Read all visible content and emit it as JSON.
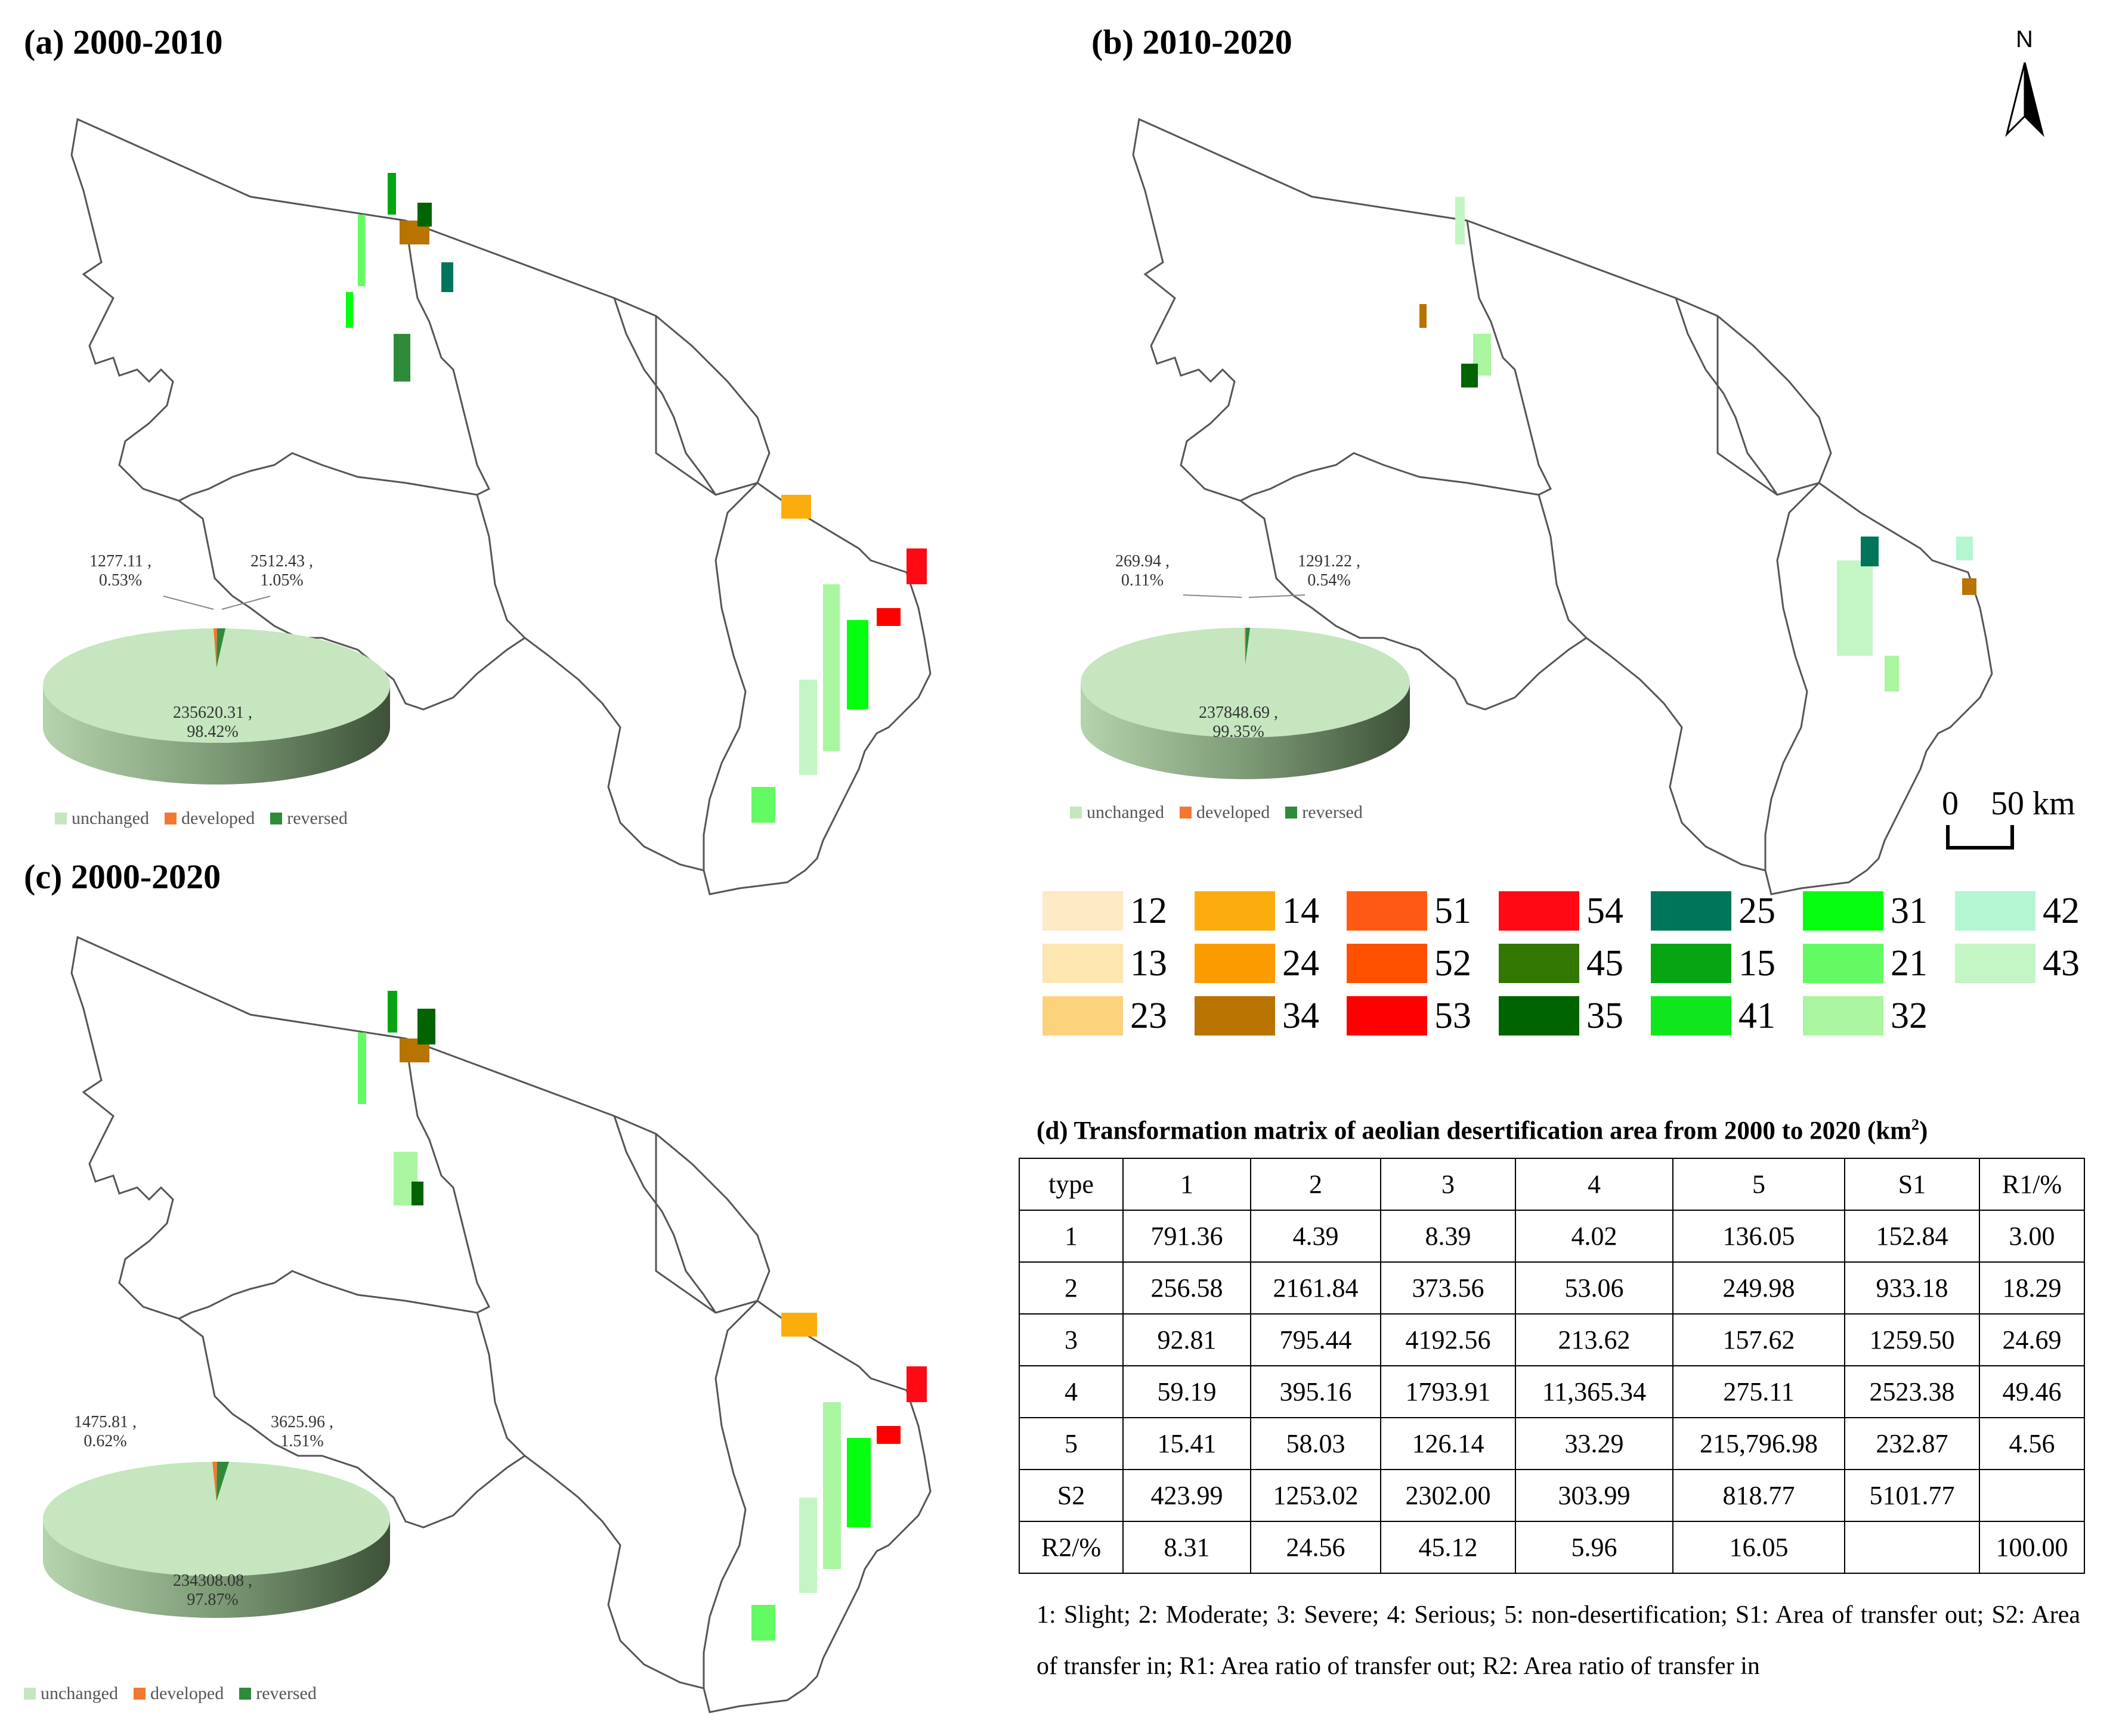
{
  "panels": {
    "a": {
      "title": "(a) 2000-2010",
      "pie": {
        "unchanged": {
          "value": "235620.31 ,",
          "pct": "98.42%"
        },
        "developed": {
          "value": "1277.11 ,",
          "pct": "0.53%"
        },
        "reversed": {
          "value": "2512.43 ,",
          "pct": "1.05%"
        }
      }
    },
    "b": {
      "title": "(b) 2010-2020",
      "pie": {
        "unchanged": {
          "value": "237848.69 ,",
          "pct": "99.35%"
        },
        "developed": {
          "value": "269.94 ,",
          "pct": "0.11%"
        },
        "reversed": {
          "value": "1291.22 ,",
          "pct": "0.54%"
        }
      }
    },
    "c": {
      "title": "(c) 2000-2020",
      "pie": {
        "unchanged": {
          "value": "234308.08 ,",
          "pct": "97.87%"
        },
        "developed": {
          "value": "1475.81 ,",
          "pct": "0.62%"
        },
        "reversed": {
          "value": "3625.96 ,",
          "pct": "1.51%"
        }
      }
    }
  },
  "pie_legend": {
    "unchanged": "unchanged",
    "developed": "developed",
    "reversed": "reversed"
  },
  "pie_colors": {
    "unchanged": "#c5e6bf",
    "developed": "#f07830",
    "reversed": "#2e8b3a"
  },
  "north_label": "N",
  "scale": {
    "zero": "0",
    "value": "50 km"
  },
  "legend": [
    {
      "label": "12",
      "color": "#fde9c4"
    },
    {
      "label": "14",
      "color": "#fcad0e"
    },
    {
      "label": "51",
      "color": "#ff5a14"
    },
    {
      "label": "54",
      "color": "#ff0a14"
    },
    {
      "label": "25",
      "color": "#00755a"
    },
    {
      "label": "31",
      "color": "#05ff0f"
    },
    {
      "label": "42",
      "color": "#b4f5d2"
    },
    {
      "label": "13",
      "color": "#fde6b0"
    },
    {
      "label": "24",
      "color": "#fc9b00"
    },
    {
      "label": "52",
      "color": "#ff5000"
    },
    {
      "label": "45",
      "color": "#327800"
    },
    {
      "label": "15",
      "color": "#05a514"
    },
    {
      "label": "21",
      "color": "#64fa64"
    },
    {
      "label": "43",
      "color": "#c4f5c4"
    },
    {
      "label": "23",
      "color": "#fdd27d"
    },
    {
      "label": "34",
      "color": "#b97300"
    },
    {
      "label": "53",
      "color": "#ff0000"
    },
    {
      "label": "35",
      "color": "#006400"
    },
    {
      "label": "41",
      "color": "#0fe61e"
    },
    {
      "label": "32",
      "color": "#aaf5a0"
    }
  ],
  "matrix": {
    "title": "(d) Transformation matrix of aeolian desertification area from 2000 to 2020 (km",
    "title_sup": "2",
    "title_end": ")",
    "header": [
      "type",
      "1",
      "2",
      "3",
      "4",
      "5",
      "S1",
      "R1/%"
    ],
    "rows": [
      [
        "1",
        "791.36",
        "4.39",
        "8.39",
        "4.02",
        "136.05",
        "152.84",
        "3.00"
      ],
      [
        "2",
        "256.58",
        "2161.84",
        "373.56",
        "53.06",
        "249.98",
        "933.18",
        "18.29"
      ],
      [
        "3",
        "92.81",
        "795.44",
        "4192.56",
        "213.62",
        "157.62",
        "1259.50",
        "24.69"
      ],
      [
        "4",
        "59.19",
        "395.16",
        "1793.91",
        "11,365.34",
        "275.11",
        "2523.38",
        "49.46"
      ],
      [
        "5",
        "15.41",
        "58.03",
        "126.14",
        "33.29",
        "215,796.98",
        "232.87",
        "4.56"
      ],
      [
        "S2",
        "423.99",
        "1253.02",
        "2302.00",
        "303.99",
        "818.77",
        "5101.77",
        ""
      ],
      [
        "R2/%",
        "8.31",
        "24.56",
        "45.12",
        "5.96",
        "16.05",
        "",
        "100.00"
      ]
    ],
    "footnote": "1: Slight; 2: Moderate; 3: Severe; 4: Serious; 5: non-desertification; S1: Area of transfer out; S2: Area of transfer in; R1: Area ratio of transfer out; R2: Area ratio of transfer in"
  }
}
